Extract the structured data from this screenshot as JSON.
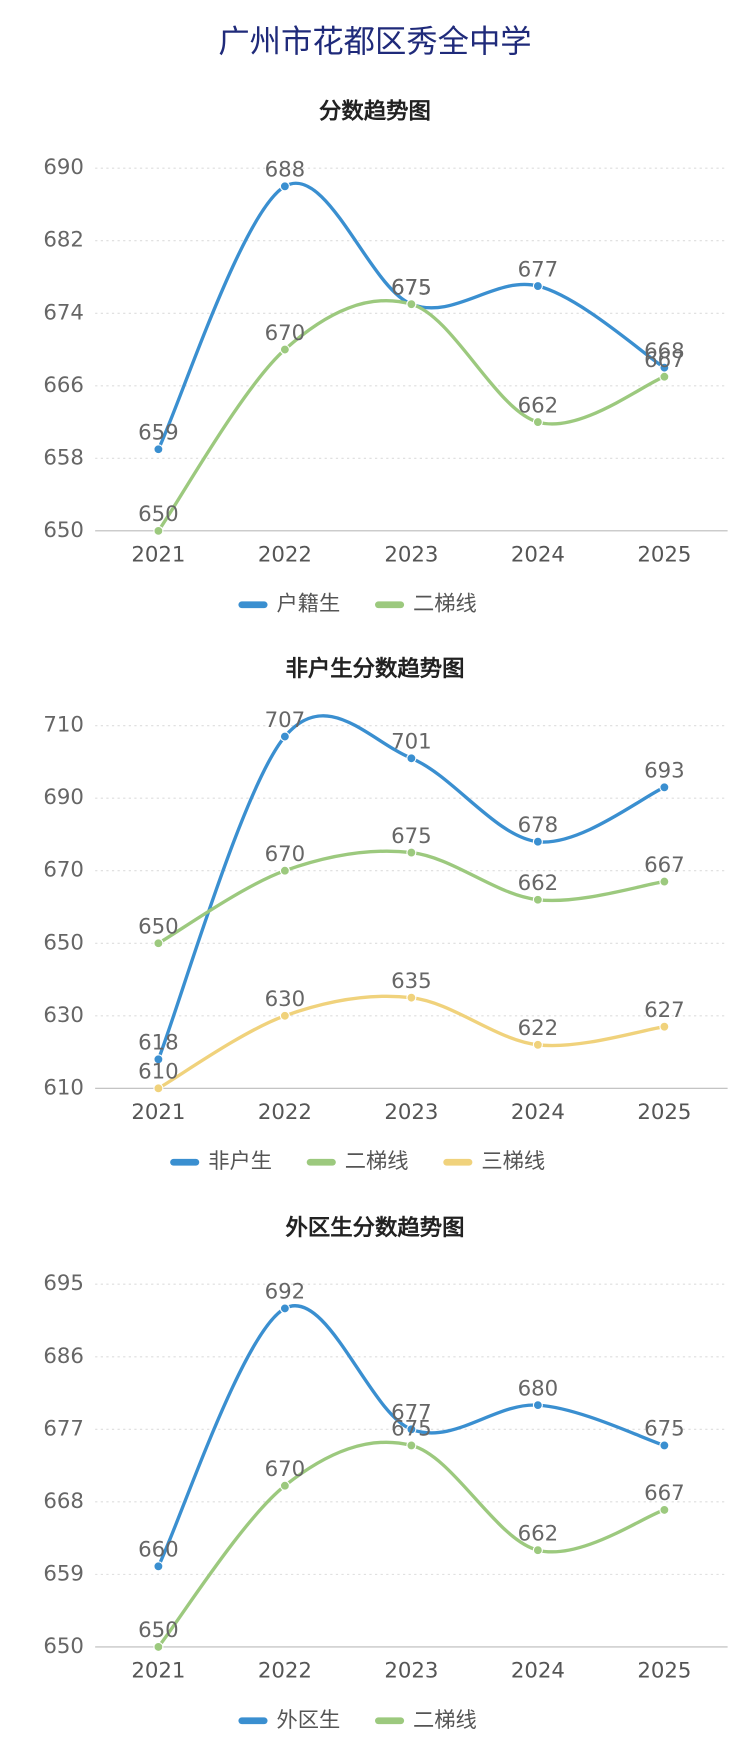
{
  "title": "广州市花都区秀全中学",
  "chart_data": [
    {
      "type": "line",
      "title": "分数趋势图",
      "categories": [
        "2021",
        "2022",
        "2023",
        "2024",
        "2025"
      ],
      "series": [
        {
          "name": "户籍生",
          "color": "#3a8fd0",
          "values": [
            659,
            688,
            675,
            677,
            668
          ]
        },
        {
          "name": "二梯线",
          "color": "#9cc97e",
          "values": [
            650,
            670,
            675,
            662,
            667
          ]
        }
      ],
      "ylim": [
        650,
        690
      ],
      "yticks": [
        650,
        658,
        666,
        674,
        682,
        690
      ],
      "grid": true,
      "legend": "bottom"
    },
    {
      "type": "line",
      "title": "非户生分数趋势图",
      "categories": [
        "2021",
        "2022",
        "2023",
        "2024",
        "2025"
      ],
      "series": [
        {
          "name": "非户生",
          "color": "#3a8fd0",
          "values": [
            618,
            707,
            701,
            678,
            693
          ]
        },
        {
          "name": "二梯线",
          "color": "#9cc97e",
          "values": [
            650,
            670,
            675,
            662,
            667
          ]
        },
        {
          "name": "三梯线",
          "color": "#f0d27c",
          "values": [
            610,
            630,
            635,
            622,
            627
          ]
        }
      ],
      "ylim": [
        610,
        710
      ],
      "yticks": [
        610,
        630,
        650,
        670,
        690,
        710
      ],
      "grid": true,
      "legend": "bottom"
    },
    {
      "type": "line",
      "title": "外区生分数趋势图",
      "categories": [
        "2021",
        "2022",
        "2023",
        "2024",
        "2025"
      ],
      "series": [
        {
          "name": "外区生",
          "color": "#3a8fd0",
          "values": [
            660,
            692,
            677,
            680,
            675
          ]
        },
        {
          "name": "二梯线",
          "color": "#9cc97e",
          "values": [
            650,
            670,
            675,
            662,
            667
          ]
        }
      ],
      "ylim": [
        650,
        695
      ],
      "yticks": [
        650,
        659,
        668,
        677,
        686,
        695
      ],
      "grid": true,
      "legend": "bottom"
    }
  ]
}
